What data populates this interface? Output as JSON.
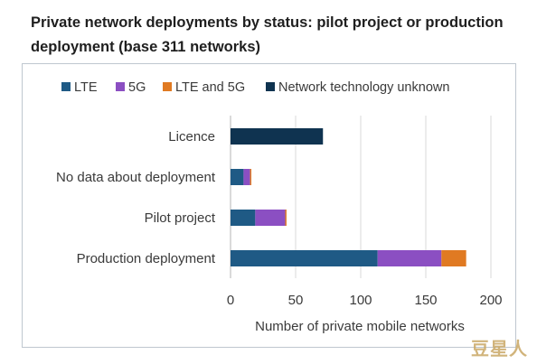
{
  "title": "Private network deployments by status: pilot project or production deployment (base 311 networks)",
  "watermark": "豆星人",
  "chart_data": {
    "type": "bar",
    "orientation": "horizontal",
    "stacked": true,
    "categories": [
      "Licence",
      "No data about deployment",
      "Pilot project",
      "Production deployment"
    ],
    "series": [
      {
        "name": "LTE",
        "color": "#1f5a85",
        "values": [
          0,
          10,
          19,
          113
        ]
      },
      {
        "name": "5G",
        "color": "#8b4fc2",
        "values": [
          0,
          5,
          23,
          49
        ]
      },
      {
        "name": "LTE and 5G",
        "color": "#e07a22",
        "values": [
          0,
          1,
          1,
          19
        ]
      },
      {
        "name": "Network technology unknown",
        "color": "#0f3350",
        "values": [
          71,
          0,
          0,
          0
        ]
      }
    ],
    "xlabel": "Number of private mobile networks",
    "ylabel": "",
    "xlim": [
      0,
      200
    ],
    "xticks": [
      0,
      50,
      100,
      150,
      200
    ],
    "grid": true,
    "legend_position": "top"
  }
}
